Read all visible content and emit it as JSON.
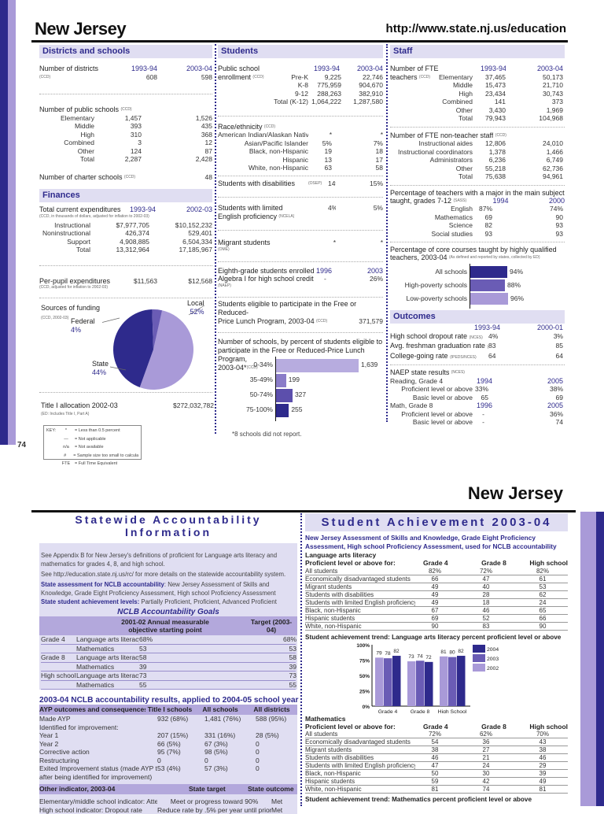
{
  "page1": {
    "page_number": "74",
    "title": "New Jersey",
    "url": "http://www.state.nj.us/education",
    "districts": {
      "header": "Districts and schools",
      "num_districts_label": "Number of districts",
      "num_districts_src": "(CCD)",
      "years": [
        "1993-94",
        "2003-04"
      ],
      "num_districts": [
        "608",
        "598"
      ],
      "public_label": "Number of public schools",
      "public_src": "(CCD)",
      "public_rows": [
        [
          "Elementary",
          "1,457",
          "1,526"
        ],
        [
          "Middle",
          "393",
          "435"
        ],
        [
          "High",
          "310",
          "368"
        ],
        [
          "Combined",
          "3",
          "12"
        ],
        [
          "Other",
          "124",
          "87"
        ],
        [
          "Total",
          "2,287",
          "2,428"
        ]
      ],
      "charter_label": "Number of charter schools",
      "charter_src": "(CCD)",
      "charter_value": "48"
    },
    "finances": {
      "header": "Finances",
      "exp_label": "Total current expenditures",
      "years": [
        "1993-94",
        "2002-03"
      ],
      "exp_src": "(CCD, in thousands of dollars, adjusted for inflation to 2002-03)",
      "exp_rows": [
        [
          "Instructional",
          "$7,977,705",
          "$10,152,232"
        ],
        [
          "Noninstructional",
          "426,374",
          "529,401"
        ],
        [
          "Support",
          "4,908,885",
          "6,504,334"
        ],
        [
          "Total",
          "13,312,964",
          "17,185,967"
        ]
      ],
      "ppe_label": "Per-pupil expenditures",
      "ppe_values": [
        "$11,563",
        "$12,568"
      ],
      "ppe_src": "(CCD, adjusted for inflation to 2002-03)",
      "funding_label": "Sources of funding",
      "funding_src": "(CCD, 2002-03)",
      "funding": [
        {
          "name": "Local",
          "pct": "52%",
          "value": 52,
          "color": "#a99ad8"
        },
        {
          "name": "State",
          "pct": "44%",
          "value": 44,
          "color": "#2e2a8c"
        },
        {
          "name": "Federal",
          "pct": "4%",
          "value": 4,
          "color": "#6a5cb5"
        }
      ],
      "title1_label": "Title I allocation 2002-03",
      "title1_src": "(ED: Includes Title I, Part A)",
      "title1_value": "$272,032,782"
    },
    "key": {
      "label": "KEY:",
      "items": [
        [
          "*",
          "= Less than 0.5 percent"
        ],
        [
          "—",
          "= Not applicable"
        ],
        [
          "n/a",
          "= Not available"
        ],
        [
          "#",
          "= Sample size too small to calculate"
        ],
        [
          "FTE",
          "= Full Time Equivalent"
        ]
      ]
    },
    "students": {
      "header": "Students",
      "enroll_label1": "Public school",
      "enroll_label2": "enrollment",
      "enroll_src": "(CCD)",
      "years": [
        "1993-94",
        "2003-04"
      ],
      "enroll_rows": [
        [
          "Pre-K",
          "9,225",
          "22,746"
        ],
        [
          "K-8",
          "775,959",
          "904,670"
        ],
        [
          "9-12",
          "288,263",
          "382,910"
        ],
        [
          "Total (K-12)",
          "1,064,222",
          "1,287,580"
        ]
      ],
      "race_label": "Race/ethnicity",
      "race_src": "(CCD)",
      "race_rows": [
        [
          "American Indian/Alaskan Native",
          "*",
          "*"
        ],
        [
          "Asian/Pacific Islander",
          "5%",
          "7%"
        ],
        [
          "Black, non-Hispanic",
          "19",
          "18"
        ],
        [
          "Hispanic",
          "13",
          "17"
        ],
        [
          "White, non-Hispanic",
          "63",
          "58"
        ]
      ],
      "disab_label": "Students with disabilities",
      "disab_src": "(OSEP)",
      "disab": [
        "14%",
        "15%"
      ],
      "lep_label1": "Students with limited",
      "lep_label2": "English proficiency",
      "lep_src": "(NCELA)",
      "lep": [
        "4%",
        "5%"
      ],
      "migrant_label": "Migrant students",
      "migrant_src": "(OME)",
      "migrant": [
        "*",
        "*"
      ],
      "alg_label1": "Eighth-grade students enrolled in",
      "alg_label2": "Algebra I for high school credit",
      "alg_src": "(NAEP)",
      "alg_years": [
        "1996",
        "2003"
      ],
      "alg": [
        "-",
        "26%"
      ],
      "frl_label1": "Students eligible to participate in the Free or Reduced-",
      "frl_label2": "Price Lunch Program, 2003-04",
      "frl_src": "(CCD)",
      "frl_value": "371,579",
      "frl_chart_label1": "Number of schools, by percent of students eligible to",
      "frl_chart_label2": "participate in the Free or Reduced-Price Lunch Program,",
      "frl_chart_label3": "2003-04*",
      "frl_chart_src": "(CCD)",
      "frl_footnote": "*8 schools did not report."
    },
    "staff": {
      "header": "Staff",
      "fte_label1": "Number of FTE",
      "fte_label2": "teachers",
      "fte_src": "(CCD)",
      "years": [
        "1993-94",
        "2003-04"
      ],
      "fte_rows": [
        [
          "Elementary",
          "37,465",
          "50,173"
        ],
        [
          "Middle",
          "15,473",
          "21,710"
        ],
        [
          "High",
          "23,434",
          "30,743"
        ],
        [
          "Combined",
          "141",
          "373"
        ],
        [
          "Other",
          "3,430",
          "1,969"
        ],
        [
          "Total",
          "79,943",
          "104,968"
        ]
      ],
      "nonteach_label": "Number of FTE non-teacher staff",
      "nonteach_src": "(CCD)",
      "nonteach_rows": [
        [
          "Instructional aides",
          "12,806",
          "24,010"
        ],
        [
          "Instructional coordinators",
          "1,378",
          "1,466"
        ],
        [
          "Administrators",
          "6,236",
          "6,749"
        ],
        [
          "Other",
          "55,218",
          "62,736"
        ],
        [
          "Total",
          "75,638",
          "94,961"
        ]
      ],
      "major_label1": "Percentage of teachers with a major in the main subject",
      "major_label2": "taught, grades 7-12",
      "major_src": "(SASS)",
      "major_years": [
        "1994",
        "2000"
      ],
      "major_rows": [
        [
          "English",
          "87%",
          "74%"
        ],
        [
          "Mathematics",
          "69",
          "90"
        ],
        [
          "Science",
          "82",
          "93"
        ],
        [
          "Social studies",
          "93",
          "93"
        ]
      ],
      "hq_label1": "Percentage of core courses taught by highly qualified",
      "hq_label2": "teachers, 2003-04",
      "hq_src": "(As defined and reported by states, collected by ED)"
    },
    "outcomes": {
      "header": "Outcomes",
      "years": [
        "1993-94",
        "2000-01"
      ],
      "rows": [
        [
          "High school dropout rate",
          "(NCES)",
          "4%",
          "3%"
        ],
        [
          "Avg. freshman graduation rate",
          "(NCES)",
          "83",
          "85"
        ],
        [
          "College-going rate",
          "(IPEDS/NCES)",
          "64",
          "64"
        ]
      ],
      "naep_label": "NAEP state results",
      "naep_src": "(NCES)",
      "reading_label": "Reading, Grade 4",
      "reading_years": [
        "1994",
        "2005"
      ],
      "reading_rows": [
        [
          "Proficient level or above",
          "33%",
          "38%"
        ],
        [
          "Basic level or above",
          "65",
          "69"
        ]
      ],
      "math_label": "Math, Grade 8",
      "math_years": [
        "1996",
        "2005"
      ],
      "math_rows": [
        [
          "Proficient level or above",
          "-",
          "36%"
        ],
        [
          "Basic level or above",
          "-",
          "74"
        ]
      ]
    }
  },
  "chart_data": [
    {
      "type": "pie",
      "title": "Sources of funding",
      "categories": [
        "Local",
        "State",
        "Federal"
      ],
      "values": [
        52,
        44,
        4
      ]
    },
    {
      "type": "bar",
      "orientation": "horizontal",
      "categories": [
        "0-34%",
        "35-49%",
        "50-74%",
        "75-100%"
      ],
      "values": [
        1639,
        199,
        327,
        255
      ],
      "colors": [
        "#b7acdf",
        "#8a7cc8",
        "#5c4fac",
        "#2e2a8c"
      ]
    },
    {
      "type": "bar",
      "orientation": "horizontal",
      "categories": [
        "All schools",
        "High-poverty schools",
        "Low-poverty schools"
      ],
      "values": [
        94,
        88,
        96
      ],
      "labels": [
        "94%",
        "88%",
        "96%"
      ],
      "colors": [
        "#2e2a8c",
        "#6a5cb5",
        "#a99ad8"
      ]
    },
    {
      "type": "bar",
      "title": "Student achievement trend: Language arts literacy percent proficient level or above",
      "categories": [
        "Grade 4",
        "Grade 8",
        "High School"
      ],
      "ylim": [
        0,
        100
      ],
      "yticks": [
        "0%",
        "25%",
        "50%",
        "75%",
        "100%"
      ],
      "series": [
        {
          "name": "2002",
          "values": [
            79,
            73,
            81
          ],
          "color": "#a99ad8"
        },
        {
          "name": "2003",
          "values": [
            78,
            74,
            80
          ],
          "color": "#6a5cb5"
        },
        {
          "name": "2004",
          "values": [
            82,
            72,
            82
          ],
          "color": "#2e2a8c"
        }
      ],
      "legend": "right"
    }
  ],
  "page2": {
    "title": "New Jersey",
    "acc": {
      "header": "Statewide Accountability Information",
      "p1": "See Appendix B for New Jersey's definitions of proficient for Language arts literacy and mathematics for grades 4, 8, and high school.",
      "p2": "See http://education.state.nj.us/rc/ for more details on the statewide accountability system.",
      "assess_label": "State assessment for NCLB accountability",
      "assess_text": ": New Jersey Assessment of Skills and Knowledge, Grade Eight Proficiency Assessment, High school Proficiency Assessment",
      "levels_label": "State student achievement levels:",
      "levels_text": " Partially Proficient, Proficient, Advanced Proficient",
      "goals_title": "NCLB Accountability Goals",
      "goals_head": [
        "2001-02 Annual measurable objective starting point",
        "Target (2003-04)"
      ],
      "goals_rows": [
        [
          "Grade 4",
          "Language arts literacy",
          "68%",
          "68%"
        ],
        [
          "",
          "Mathematics",
          "53",
          "53"
        ],
        [
          "Grade 8",
          "Language arts literacy",
          "58",
          "58"
        ],
        [
          "",
          "Mathematics",
          "39",
          "39"
        ],
        [
          "High school",
          "Language arts literacy",
          "73",
          "73"
        ],
        [
          "",
          "Mathematics",
          "55",
          "55"
        ]
      ],
      "results_title": "2003-04 NCLB accountability results, applied to 2004-05 school year",
      "results_head": [
        "AYP outcomes and consequences",
        "Title I schools",
        "All schools",
        "All districts"
      ],
      "results_rows": [
        [
          "Made AYP",
          "932  (68%)",
          "1,481  (76%)",
          "588  (95%)"
        ],
        [
          "Identified for improvement:",
          "",
          "",
          ""
        ],
        [
          "   Year 1",
          "207  (15%)",
          "331  (16%)",
          "28   (5%)"
        ],
        [
          "   Year 2",
          "66   (5%)",
          "67   (3%)",
          "0"
        ],
        [
          "   Corrective action",
          "95   (7%)",
          "98   (5%)",
          "0"
        ],
        [
          "   Restructuring",
          "0",
          "0",
          "0"
        ],
        [
          "Exited Improvement status (made AYP twice",
          "53   (4%)",
          "57   (3%)",
          "0"
        ],
        [
          " after being identified for improvement)",
          "",
          "",
          ""
        ]
      ],
      "other_head": [
        "Other indicator, 2003-04",
        "State target",
        "State outcome"
      ],
      "other_rows": [
        [
          "Elementary/middle school indicator: Attendance",
          "Meet or progress toward 90%",
          "Met"
        ],
        [
          "High school indicator: Dropout rate",
          "Reduce rate by .5% per year until prior",
          "Met"
        ]
      ]
    },
    "ach": {
      "header": "Student Achievement 2003-04",
      "intro": "New Jersey Assessment of Skills and Knowledge, Grade Eight Proficiency Assessment, High school Proficiency Assessment, used for NCLB accountability",
      "cols": [
        "Proficient level or above for:",
        "Grade 4",
        "Grade 8",
        "High school"
      ],
      "la_label": "Language arts literacy",
      "la_rows": [
        [
          "All students",
          "82%",
          "72%",
          "82%"
        ],
        [
          "Economically disadvantaged students",
          "66",
          "47",
          "61"
        ],
        [
          "Migrant students",
          "49",
          "40",
          "53"
        ],
        [
          "Students with disabilities",
          "49",
          "28",
          "62"
        ],
        [
          "Students with limited English proficiency",
          "49",
          "18",
          "24"
        ],
        [
          "Black, non-Hispanic",
          "67",
          "46",
          "65"
        ],
        [
          "Hispanic students",
          "69",
          "52",
          "66"
        ],
        [
          "White, non-Hispanic",
          "90",
          "83",
          "90"
        ]
      ],
      "la_trend": "Student achievement trend: Language arts literacy percent proficient level or above",
      "math_label": "Mathematics",
      "math_rows": [
        [
          "All students",
          "72%",
          "62%",
          "70%"
        ],
        [
          "Economically disadvantaged students",
          "54",
          "36",
          "43"
        ],
        [
          "Migrant students",
          "38",
          "27",
          "38"
        ],
        [
          "Students with disabilities",
          "46",
          "21",
          "46"
        ],
        [
          "Students with limited English proficiency",
          "47",
          "24",
          "29"
        ],
        [
          "Black, non-Hispanic",
          "50",
          "30",
          "39"
        ],
        [
          "Hispanic students",
          "59",
          "42",
          "49"
        ],
        [
          "White, non-Hispanic",
          "81",
          "74",
          "81"
        ]
      ],
      "math_trend": "Student achievement trend: Mathematics percent proficient level or above"
    }
  }
}
